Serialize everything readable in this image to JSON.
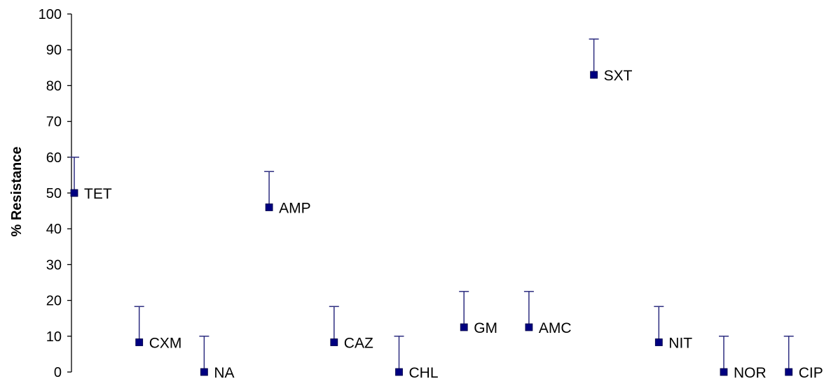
{
  "chart_data": {
    "type": "scatter",
    "ylabel": "% Resistance",
    "xlabel": "",
    "title": "",
    "ylim": [
      0,
      100
    ],
    "yticks": [
      0,
      10,
      20,
      30,
      40,
      50,
      60,
      70,
      80,
      90,
      100
    ],
    "grid": false,
    "legend": "none",
    "marker_color": "#000080",
    "errorbar_color": "#2e2e80",
    "points": [
      {
        "label": "TET",
        "y": 50,
        "err": 10
      },
      {
        "label": "CXM",
        "y": 8.3,
        "err": 10
      },
      {
        "label": "NA",
        "y": 0,
        "err": 10
      },
      {
        "label": "AMP",
        "y": 46,
        "err": 10
      },
      {
        "label": "CAZ",
        "y": 8.3,
        "err": 10
      },
      {
        "label": "CHL",
        "y": 0,
        "err": 10
      },
      {
        "label": "GM",
        "y": 12.5,
        "err": 10
      },
      {
        "label": "AMC",
        "y": 12.5,
        "err": 10
      },
      {
        "label": "SXT",
        "y": 83,
        "err": 10
      },
      {
        "label": "NIT",
        "y": 8.3,
        "err": 10
      },
      {
        "label": "NOR",
        "y": 0,
        "err": 10
      },
      {
        "label": "CIP",
        "y": 0,
        "err": 10
      }
    ]
  }
}
